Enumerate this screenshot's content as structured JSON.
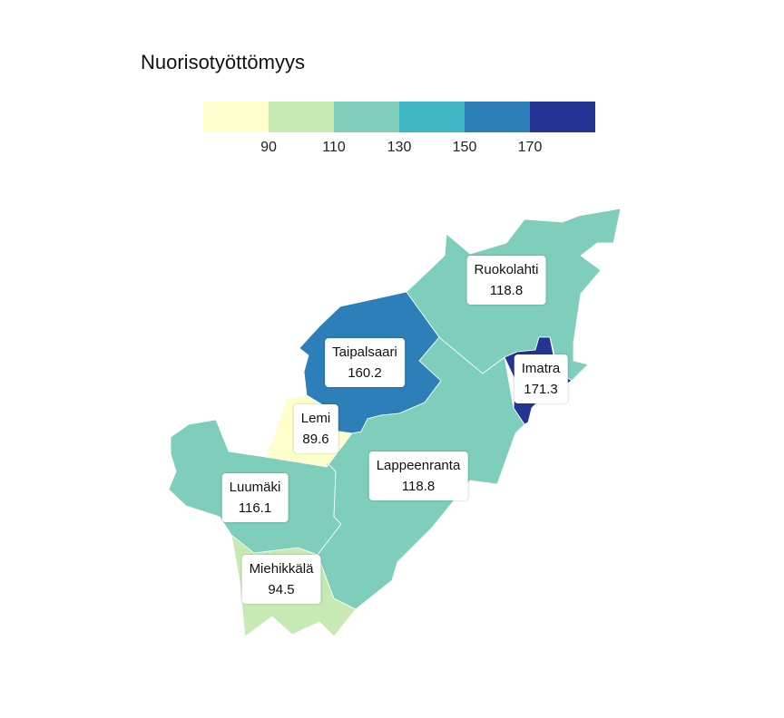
{
  "title": "Nuorisotyöttömyys",
  "legend": {
    "colors": [
      "#ffffcc",
      "#c7e9b4",
      "#7fcdbb",
      "#41b6c4",
      "#2c7fb8",
      "#253494"
    ],
    "ticks": [
      "90",
      "110",
      "130",
      "150",
      "170"
    ]
  },
  "regions": [
    {
      "name": "Ruokolahti",
      "value": "118.8",
      "color": "#7fcdbb"
    },
    {
      "name": "Taipalsaari",
      "value": "160.2",
      "color": "#2c7fb8"
    },
    {
      "name": "Imatra",
      "value": "171.3",
      "color": "#253494"
    },
    {
      "name": "Lemi",
      "value": "89.6",
      "color": "#ffffcc"
    },
    {
      "name": "Lappeenranta",
      "value": "118.8",
      "color": "#7fcdbb"
    },
    {
      "name": "Luumäki",
      "value": "116.1",
      "color": "#7fcdbb"
    },
    {
      "name": "Miehikkälä",
      "value": "94.5",
      "color": "#c7e9b4"
    }
  ]
}
